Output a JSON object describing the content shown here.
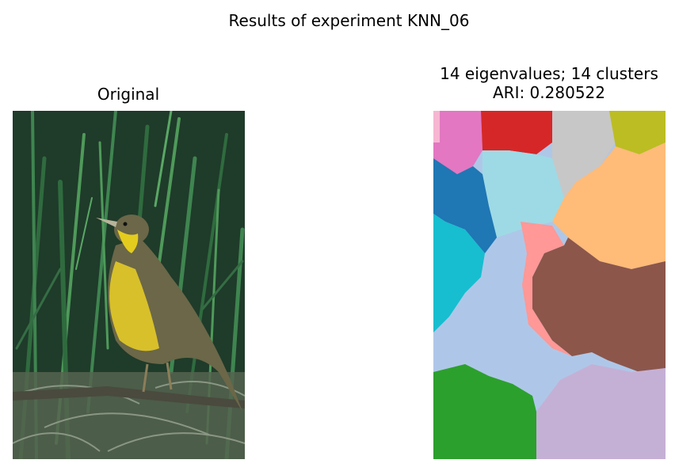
{
  "figure": {
    "suptitle": "Results of experiment KNN_06"
  },
  "left_panel": {
    "title": "Original",
    "image": "photo of a yellow-throated bird (longclaw) perched on a branch among green grass",
    "colors": {
      "grass_dark": "#1f3b2a",
      "grass_mid": "#2f6b3e",
      "grass_light": "#4f9a5a",
      "dry_grass": "#6f7f6a",
      "bird_yellow": "#d8c02a",
      "bird_brown": "#6b6748",
      "branch": "#4a4a3e"
    }
  },
  "right_panel": {
    "title_line1": "14 eigenvalues; 14 clusters",
    "title_line2": "ARI: 0.280522",
    "image": "spectral clustering segmentation map with 14 colored clusters",
    "cluster_colors": [
      "#1f77b4",
      "#aec7e8",
      "#ffbb78",
      "#2ca02c",
      "#d62728",
      "#ff9896",
      "#8c564b",
      "#c5b0d5",
      "#e377c2",
      "#f7b6d2",
      "#c7c7c7",
      "#bcbd22",
      "#17becf",
      "#9edae5"
    ]
  }
}
